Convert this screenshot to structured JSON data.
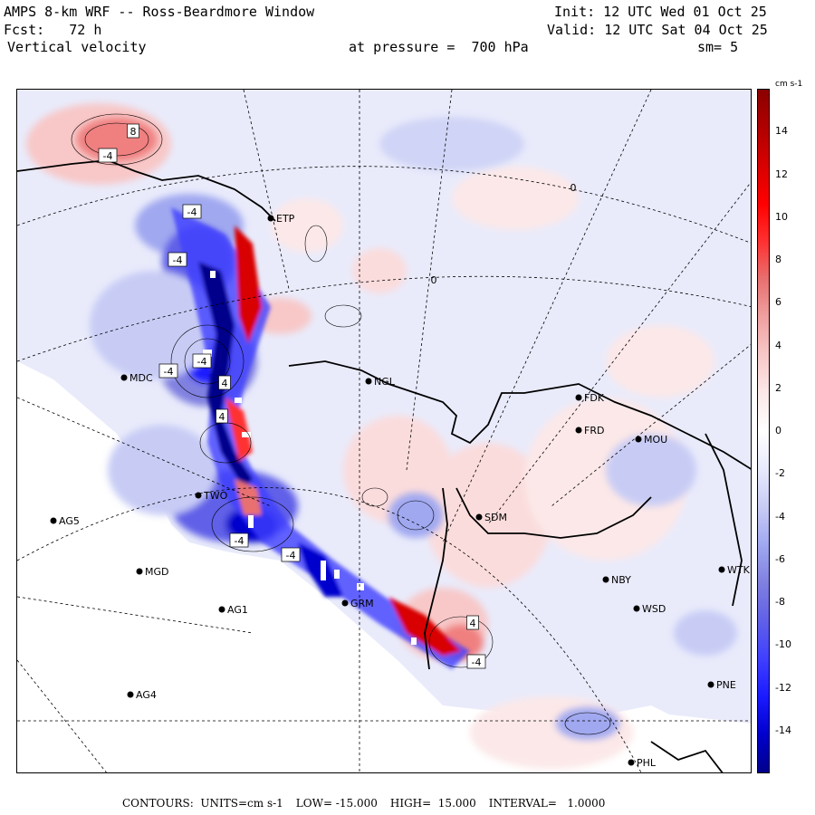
{
  "header": {
    "model": "AMPS 8-km WRF -- Ross-Beardmore Window",
    "forecast": "Fcst:   72 h",
    "field": "Vertical velocity",
    "init": "Init: 12 UTC Wed 01 Oct 25",
    "valid": "Valid: 12 UTC Sat 04 Oct 25",
    "pressure": "at pressure =  700 hPa",
    "smooth": "sm= 5"
  },
  "colorbar": {
    "units": "cm s-1",
    "ticks": [
      "14",
      "12",
      "10",
      "8",
      "6",
      "4",
      "2",
      "0",
      "-2",
      "-4",
      "-6",
      "-8",
      "-10",
      "-12",
      "-14"
    ],
    "range": [
      -16,
      16
    ],
    "colors": [
      "#00008b",
      "#0000cd",
      "#1a1aff",
      "#4040ff",
      "#6060e8",
      "#8080e0",
      "#a0a8f0",
      "#c8ccf5",
      "#e8eafc",
      "#ffffff",
      "#fce8e8",
      "#f8c8c8",
      "#f0a0a0",
      "#e87070",
      "#ff3030",
      "#ff0000",
      "#d80000",
      "#b00000",
      "#8b0000"
    ]
  },
  "stations": [
    {
      "id": "MDC",
      "label": "MDC"
    },
    {
      "id": "NGL",
      "label": "NGL"
    },
    {
      "id": "FDK",
      "label": "FDK"
    },
    {
      "id": "FRD",
      "label": "FRD"
    },
    {
      "id": "MOU",
      "label": "MOU"
    },
    {
      "id": "TWO",
      "label": "TWO"
    },
    {
      "id": "AG5",
      "label": "AG5"
    },
    {
      "id": "SDM",
      "label": "SDM"
    },
    {
      "id": "MGD",
      "label": "MGD"
    },
    {
      "id": "NBY",
      "label": "NBY"
    },
    {
      "id": "AG1",
      "label": "AG1"
    },
    {
      "id": "GRM",
      "label": "GRM"
    },
    {
      "id": "WSD",
      "label": "WSD"
    },
    {
      "id": "AG4",
      "label": "AG4"
    },
    {
      "id": "PNE",
      "label": "PNE"
    },
    {
      "id": "PHL",
      "label": "PHL"
    },
    {
      "id": "ETP",
      "label": "ETP"
    },
    {
      "id": "WTK",
      "label": "WTK"
    }
  ],
  "contour_labels": [
    "8",
    "-4",
    "-4",
    "-4",
    "-4",
    "-4",
    "4",
    "4",
    "-4",
    "-4",
    "4",
    "-4",
    "0",
    "0"
  ],
  "footer": {
    "contours": "CONTOURS:  UNITS=cm s-1",
    "low": "LOW= -15.000",
    "high": "HIGH=  15.000",
    "interval": "INTERVAL=   1.0000"
  }
}
